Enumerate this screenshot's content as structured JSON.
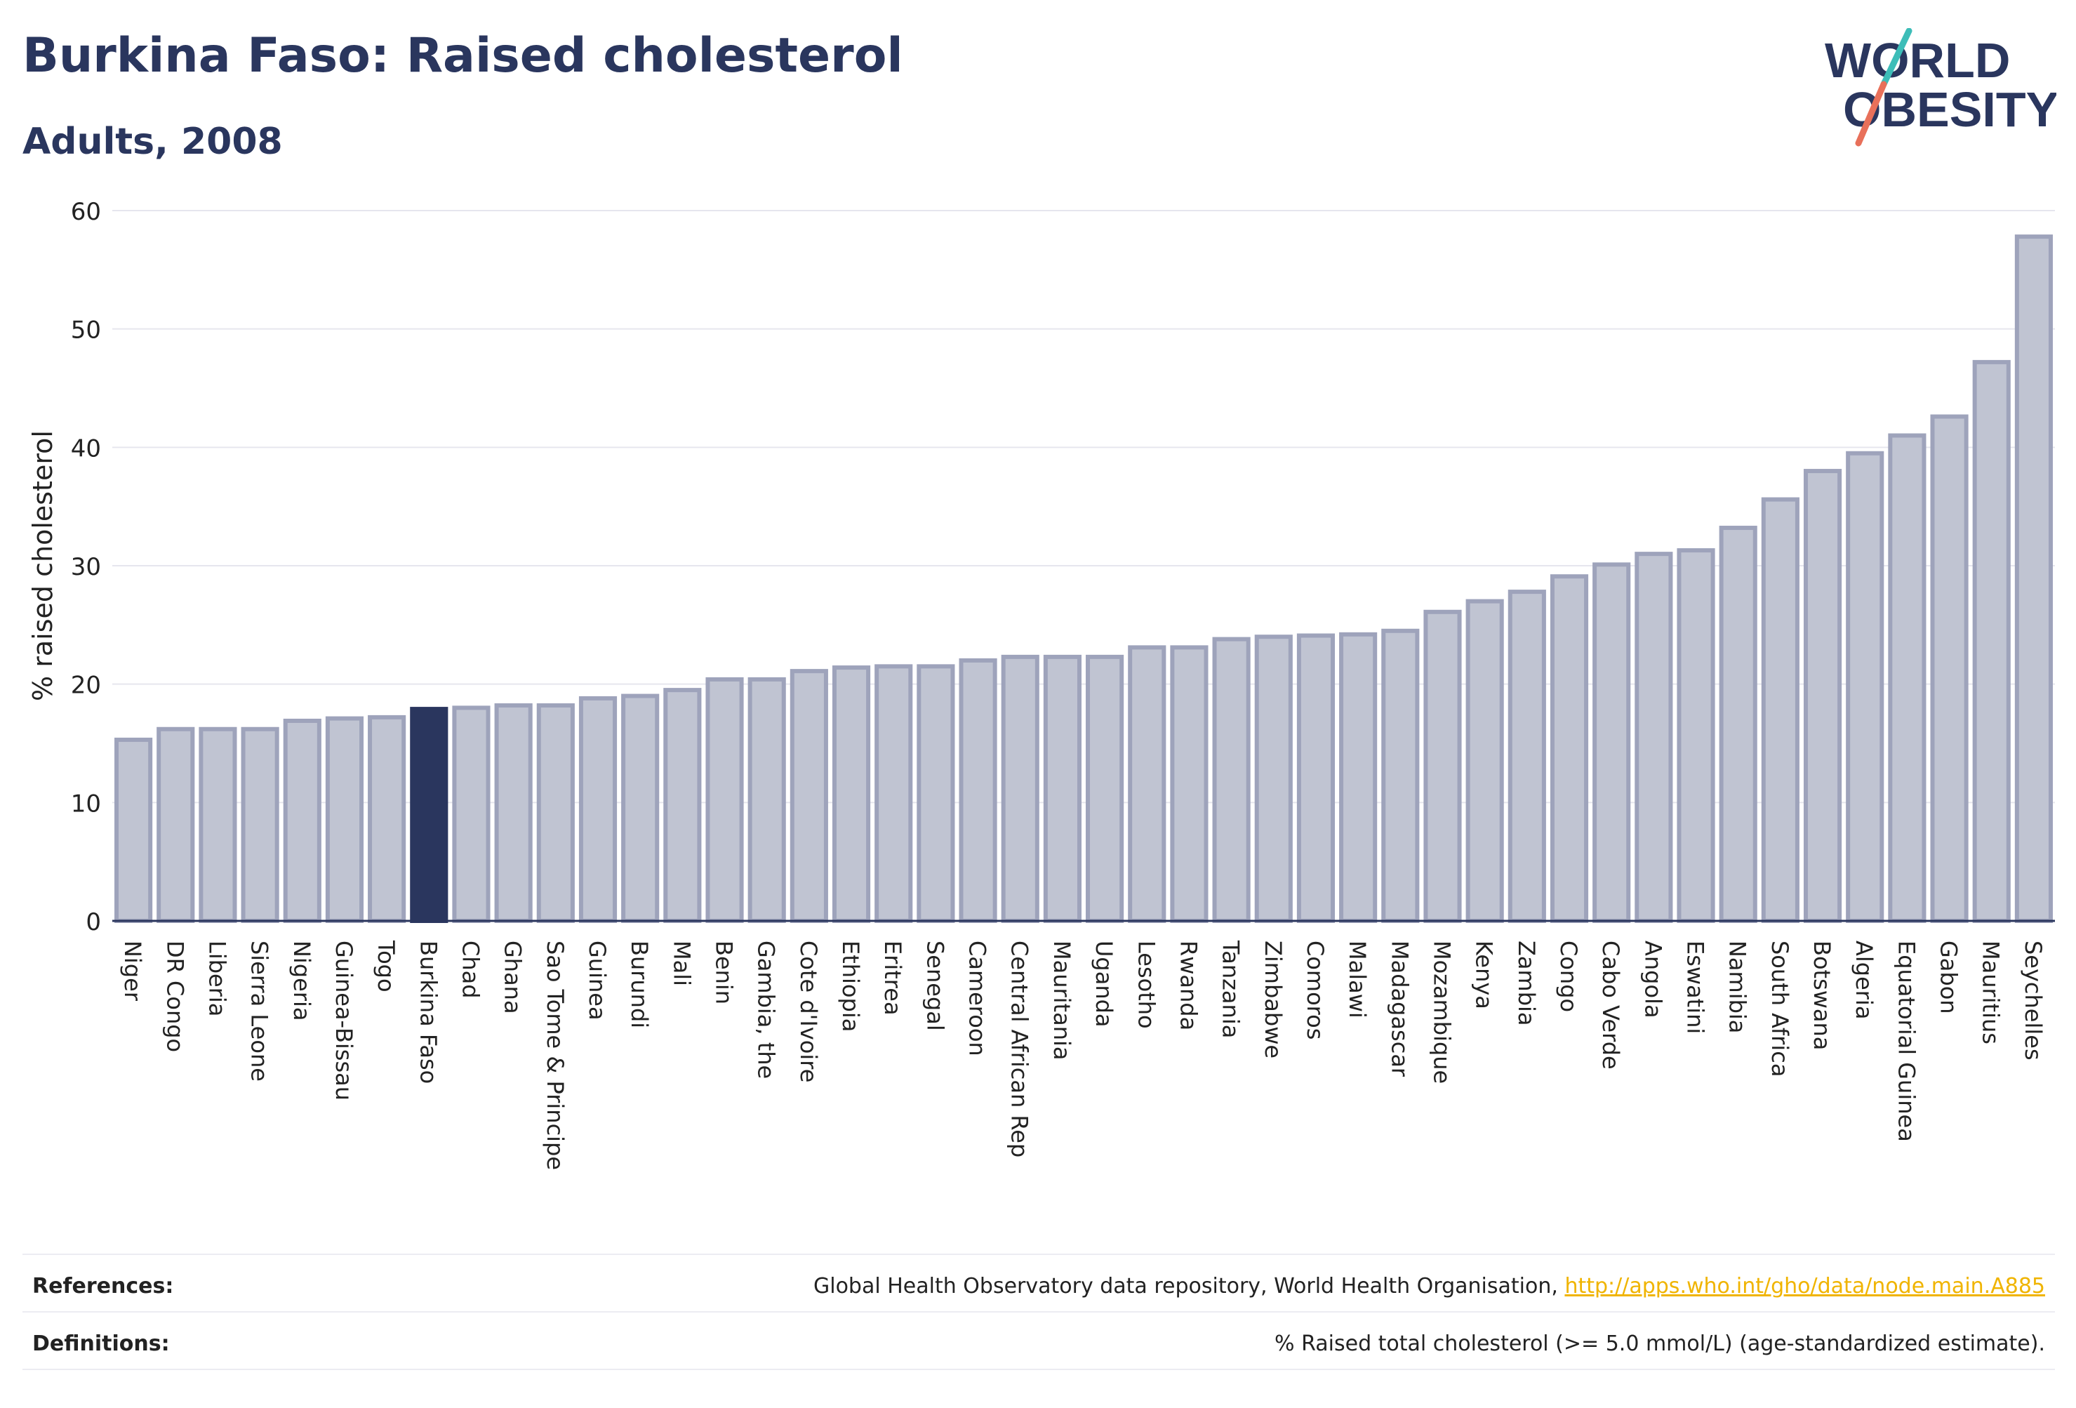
{
  "header": {
    "title": "Burkina Faso: Raised cholesterol",
    "subtitle": "Adults, 2008"
  },
  "logo": {
    "line1": "WORLD",
    "line2": "OBESITY",
    "colors": {
      "text": "#2a365e",
      "slash_top": "#3dbdb8",
      "slash_bottom": "#e8705a"
    }
  },
  "chart_data": {
    "type": "bar",
    "title": "Burkina Faso: Raised cholesterol",
    "subtitle": "Adults, 2008",
    "xlabel": "",
    "ylabel": "% raised cholesterol",
    "ylim": [
      0,
      60
    ],
    "yticks": [
      0,
      10,
      20,
      30,
      40,
      50,
      60
    ],
    "grid": true,
    "highlight": "Burkina Faso",
    "colors": {
      "bar": "#c0c4d2",
      "bar_edge": "#9ea3bb",
      "highlight": "#2a365e",
      "grid": "#e6e6ee",
      "axis": "#2a365e"
    },
    "categories": [
      "Niger",
      "DR Congo",
      "Liberia",
      "Sierra Leone",
      "Nigeria",
      "Guinea-Bissau",
      "Togo",
      "Burkina Faso",
      "Chad",
      "Ghana",
      "Sao Tome & Principe",
      "Guinea",
      "Burundi",
      "Mali",
      "Benin",
      "Gambia, the",
      "Cote d'Ivoire",
      "Ethiopia",
      "Eritrea",
      "Senegal",
      "Cameroon",
      "Central African Rep",
      "Mauritania",
      "Uganda",
      "Lesotho",
      "Rwanda",
      "Tanzania",
      "Zimbabwe",
      "Comoros",
      "Malawi",
      "Madagascar",
      "Mozambique",
      "Kenya",
      "Zambia",
      "Congo",
      "Cabo Verde",
      "Angola",
      "Eswatini",
      "Namibia",
      "South Africa",
      "Botswana",
      "Algeria",
      "Equatorial Guinea",
      "Gabon",
      "Mauritius",
      "Seychelles"
    ],
    "values": [
      15.3,
      16.2,
      16.2,
      16.2,
      16.9,
      17.1,
      17.2,
      17.9,
      18.0,
      18.2,
      18.2,
      18.8,
      19.0,
      19.5,
      20.4,
      20.4,
      21.1,
      21.4,
      21.5,
      21.5,
      22.0,
      22.3,
      22.3,
      22.3,
      23.1,
      23.1,
      23.8,
      24.0,
      24.1,
      24.2,
      24.5,
      26.1,
      27.0,
      27.8,
      29.1,
      30.1,
      31.0,
      31.3,
      33.2,
      35.6,
      38.0,
      39.5,
      41.0,
      42.6,
      47.2,
      57.8
    ]
  },
  "footer": {
    "references_label": "References:",
    "references_text": "Global Health Observatory data repository, World Health Organisation,",
    "references_link": "http://apps.who.int/gho/data/node.main.A885",
    "definitions_label": "Definitions:",
    "definitions_text": "% Raised total cholesterol (>= 5.0 mmol/L) (age-standardized estimate)."
  }
}
